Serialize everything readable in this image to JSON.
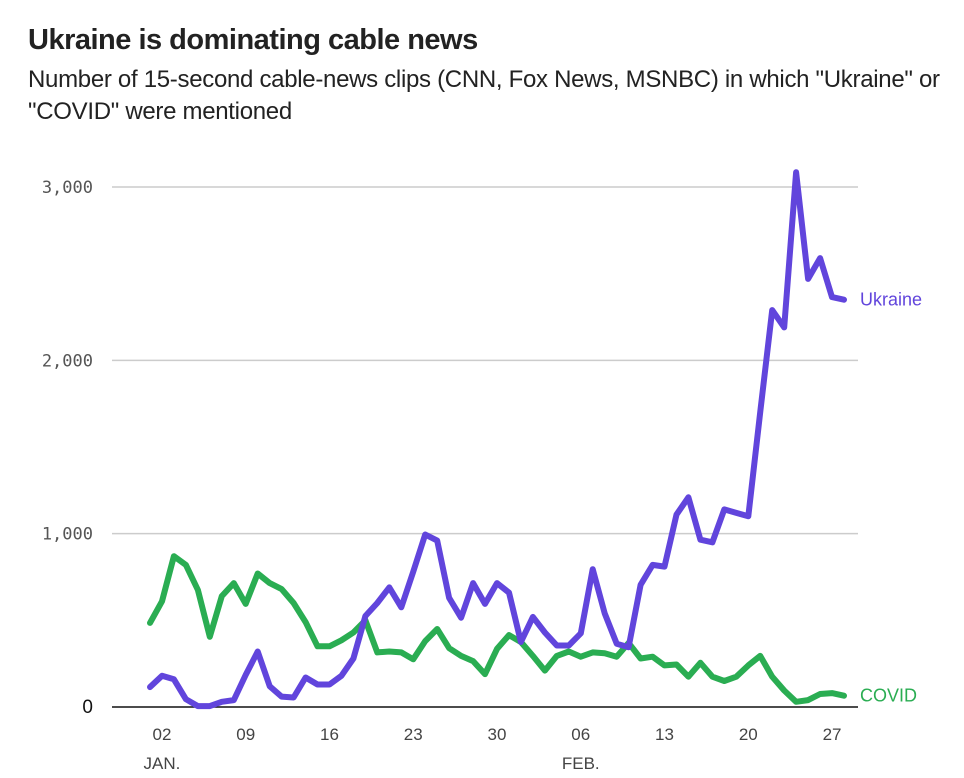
{
  "chart_data": {
    "type": "line",
    "title": "Ukraine is dominating cable news",
    "subtitle": "Number of 15-second cable-news clips (CNN, Fox News, MSNBC) in which \"Ukraine\" or \"COVID\" were mentioned",
    "xlabel": "",
    "ylabel": "",
    "ylim": [
      0,
      3000
    ],
    "y_ticks": [
      {
        "value": 0,
        "label": "0"
      },
      {
        "value": 1000,
        "label": "1,000"
      },
      {
        "value": 2000,
        "label": "2,000"
      },
      {
        "value": 3000,
        "label": "3,000"
      }
    ],
    "x_range_days": [
      0,
      58
    ],
    "x_start_date": "Jan 1",
    "x_ticks": [
      {
        "day": 1,
        "label": "02",
        "sublabel": "JAN."
      },
      {
        "day": 8,
        "label": "09",
        "sublabel": ""
      },
      {
        "day": 15,
        "label": "16",
        "sublabel": ""
      },
      {
        "day": 22,
        "label": "23",
        "sublabel": ""
      },
      {
        "day": 29,
        "label": "30",
        "sublabel": ""
      },
      {
        "day": 36,
        "label": "06",
        "sublabel": "FEB."
      },
      {
        "day": 43,
        "label": "13",
        "sublabel": ""
      },
      {
        "day": 50,
        "label": "20",
        "sublabel": ""
      },
      {
        "day": 57,
        "label": "27",
        "sublabel": ""
      }
    ],
    "grid": true,
    "legend": "inline-right",
    "series": [
      {
        "name": "Ukraine",
        "color": "#6145dc",
        "values": [
          115,
          180,
          160,
          45,
          5,
          5,
          30,
          40,
          185,
          320,
          120,
          60,
          55,
          170,
          130,
          130,
          180,
          280,
          525,
          600,
          690,
          575,
          780,
          995,
          960,
          630,
          515,
          715,
          595,
          715,
          660,
          375,
          520,
          430,
          355,
          355,
          425,
          795,
          540,
          365,
          345,
          705,
          820,
          810,
          1110,
          1210,
          965,
          950,
          1140,
          1120,
          1100,
          1700,
          2290,
          2190,
          3085,
          2470,
          2590,
          2365,
          2350
        ]
      },
      {
        "name": "COVID",
        "color": "#2aad52",
        "values": [
          485,
          610,
          870,
          820,
          675,
          405,
          640,
          715,
          595,
          770,
          715,
          680,
          600,
          490,
          350,
          350,
          385,
          430,
          500,
          315,
          320,
          315,
          275,
          380,
          450,
          340,
          295,
          265,
          190,
          335,
          415,
          375,
          295,
          210,
          295,
          320,
          290,
          315,
          310,
          290,
          370,
          280,
          290,
          240,
          245,
          175,
          255,
          175,
          150,
          175,
          240,
          295,
          175,
          95,
          30,
          40,
          75,
          80,
          65
        ]
      }
    ]
  }
}
